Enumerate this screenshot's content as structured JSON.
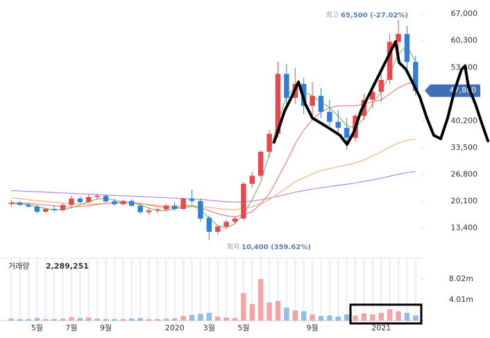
{
  "chart_data": {
    "type": "candlestick",
    "categories": [
      null,
      null,
      null,
      "5월",
      null,
      null,
      null,
      "7월",
      null,
      null,
      null,
      "9월",
      null,
      null,
      null,
      null,
      null,
      null,
      null,
      "2020",
      null,
      null,
      null,
      "3월",
      null,
      null,
      null,
      "5월",
      null,
      null,
      null,
      null,
      null,
      null,
      null,
      "9월",
      null,
      null,
      null,
      null,
      null,
      null,
      null,
      "2021",
      null,
      null,
      null,
      null
    ],
    "open": [
      19500,
      19800,
      19200,
      18800,
      17500,
      18200,
      17900,
      19200,
      20800,
      19900,
      21200,
      21500,
      20100,
      19400,
      20200,
      19000,
      17400,
      17800,
      18100,
      19000,
      18200,
      20800,
      20200,
      16000,
      12500,
      13800,
      15000,
      15800,
      24500,
      26500,
      32500,
      37000,
      52000,
      46000,
      49500,
      44000,
      46500,
      42500,
      40000,
      38500,
      36000,
      41500,
      45500,
      47500,
      50500,
      60000,
      62000,
      55000
    ],
    "high": [
      20500,
      20200,
      19800,
      19300,
      18500,
      19000,
      19500,
      21500,
      21300,
      21800,
      22000,
      21900,
      20800,
      20500,
      20600,
      19400,
      18200,
      18500,
      19500,
      20000,
      21000,
      23000,
      20800,
      16500,
      14200,
      15500,
      16200,
      25000,
      27500,
      33000,
      38000,
      55000,
      54500,
      53500,
      51000,
      50000,
      48500,
      45500,
      43000,
      41000,
      42000,
      47000,
      49500,
      52000,
      62000,
      65500,
      64000,
      56500
    ],
    "low": [
      18800,
      19000,
      18500,
      17000,
      17200,
      17500,
      17600,
      18800,
      19500,
      19600,
      20500,
      19800,
      19000,
      19100,
      18800,
      17000,
      16800,
      17200,
      17600,
      17800,
      18000,
      19500,
      15000,
      10400,
      11800,
      13200,
      14500,
      15500,
      23500,
      26000,
      31000,
      36000,
      44000,
      44500,
      42000,
      41500,
      41000,
      39000,
      37000,
      33000,
      35000,
      40500,
      43500,
      45000,
      49500,
      57000,
      52000,
      46500
    ],
    "close": [
      19800,
      19200,
      18800,
      17500,
      18200,
      17900,
      19200,
      20800,
      19900,
      21200,
      21500,
      20100,
      19400,
      20200,
      19000,
      17400,
      17800,
      18100,
      19000,
      18200,
      20800,
      20200,
      15800,
      12500,
      13800,
      15000,
      15800,
      24500,
      26500,
      32500,
      37000,
      52000,
      46000,
      49500,
      44000,
      46500,
      42500,
      40000,
      38500,
      36000,
      41500,
      45500,
      47500,
      50500,
      60000,
      62000,
      55000,
      47800
    ],
    "up_color": "#e8474f",
    "down_color": "#2f7fd8",
    "ylim": [
      7100,
      69100
    ],
    "yticks": [
      {
        "value": 13400,
        "label": "13,400"
      },
      {
        "value": 20100,
        "label": "20,100"
      },
      {
        "value": 26800,
        "label": "26,800"
      },
      {
        "value": 33500,
        "label": "33,500"
      },
      {
        "value": 40200,
        "label": "40,200"
      },
      {
        "value": 47800,
        "label": "47,800"
      },
      {
        "value": 53600,
        "label": "53,600"
      },
      {
        "value": 60300,
        "label": "60,300"
      },
      {
        "value": 67000,
        "label": "67,000"
      }
    ],
    "last_price_label": "47,800",
    "series": [
      {
        "color": "#b784f0",
        "values": [
          22800,
          22700,
          22600,
          22500,
          22400,
          22300,
          22200,
          22100,
          22000,
          21900,
          21800,
          21700,
          21600,
          21500,
          21400,
          21300,
          21200,
          21100,
          21000,
          20900,
          20800,
          20700,
          20600,
          20400,
          20200,
          20000,
          19900,
          20000,
          20200,
          20500,
          20900,
          21400,
          21900,
          22400,
          22800,
          23200,
          23500,
          23800,
          24100,
          24400,
          24700,
          25100,
          25500,
          25900,
          26400,
          26900,
          27300,
          27600
        ]
      },
      {
        "color": "#f7b27a",
        "values": [
          21000,
          20800,
          20500,
          20300,
          20100,
          19900,
          19700,
          19500,
          19400,
          19400,
          19500,
          19600,
          19700,
          19700,
          19600,
          19500,
          19300,
          19100,
          19000,
          19000,
          19000,
          19000,
          18900,
          18600,
          18300,
          18100,
          18000,
          18300,
          18800,
          19500,
          20500,
          22000,
          23500,
          25000,
          26000,
          27000,
          27800,
          28300,
          28800,
          29200,
          29700,
          30500,
          31500,
          32500,
          33700,
          34700,
          35400,
          35700
        ]
      },
      {
        "color": "#f08080",
        "values": [
          19800,
          19700,
          19600,
          19400,
          19200,
          19000,
          18800,
          18700,
          18800,
          19000,
          19300,
          19600,
          19800,
          19900,
          19800,
          19600,
          19200,
          18800,
          18600,
          18500,
          18600,
          18800,
          18500,
          17800,
          17000,
          16500,
          16200,
          16800,
          17500,
          19500,
          22000,
          26000,
          30000,
          34500,
          38000,
          40500,
          42500,
          43500,
          44000,
          44000,
          44000,
          44500,
          45000,
          45500,
          47000,
          48500,
          49500,
          50000
        ]
      },
      {
        "color": "#6cc26c",
        "values": [
          19500,
          19500,
          19300,
          18800,
          18300,
          18000,
          18000,
          18500,
          19200,
          20000,
          20700,
          20800,
          20400,
          20000,
          19800,
          19200,
          18400,
          17800,
          17800,
          18200,
          18800,
          19200,
          18000,
          16000,
          14000,
          13500,
          14500,
          17000,
          20500,
          25000,
          32000,
          40000,
          46500,
          48500,
          47500,
          46500,
          45000,
          43500,
          41500,
          39000,
          38500,
          41000,
          44500,
          47500,
          52000,
          57000,
          59000,
          55000
        ]
      }
    ],
    "annotations": {
      "max_prefix": "최고",
      "max_text": "65,500 (-27.02%)",
      "min_prefix": "최저",
      "min_text": "10,400 (359.62%)"
    },
    "volume": {
      "label": "거래량",
      "label_value": "2,289,251",
      "up_color": "#f4a3a7",
      "down_color": "#92bdea",
      "ylim": [
        0,
        12030000
      ],
      "yticks": [
        {
          "value": 4010000,
          "label": "4.01m"
        },
        {
          "value": 8020000,
          "label": "8.02m"
        }
      ],
      "values": [
        400000,
        300000,
        300000,
        500000,
        300000,
        300000,
        400000,
        700000,
        500000,
        600000,
        400000,
        300000,
        300000,
        300000,
        400000,
        500000,
        300000,
        300000,
        400000,
        400000,
        900000,
        1100000,
        1300000,
        1500000,
        800000,
        600000,
        500000,
        5300000,
        3200000,
        8000000,
        3500000,
        3800000,
        2500000,
        2000000,
        1800000,
        1200000,
        900000,
        1000000,
        800000,
        1200000,
        1000000,
        1400000,
        1200000,
        1500000,
        2200000,
        1800000,
        1500000,
        1000000
      ]
    }
  }
}
